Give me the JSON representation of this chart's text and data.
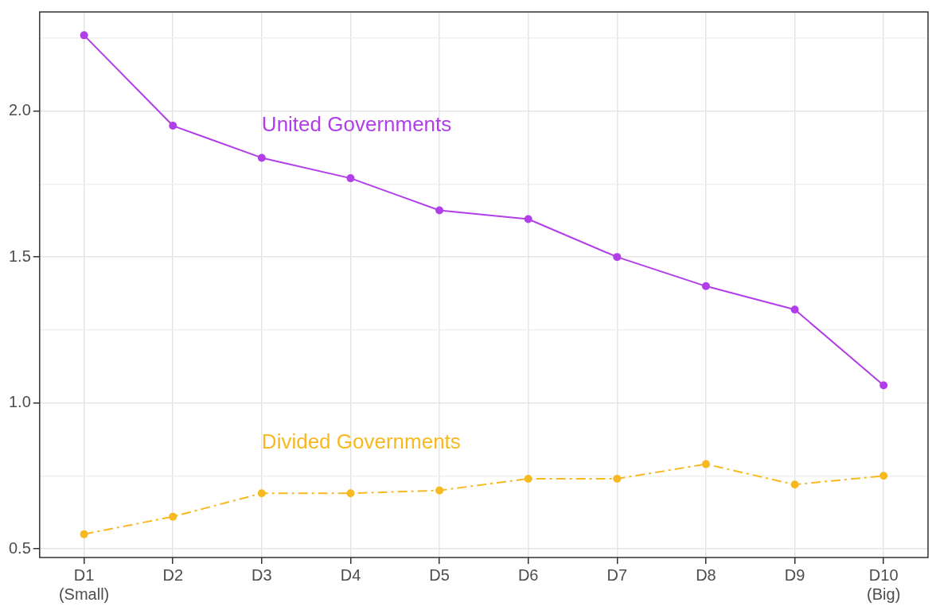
{
  "chart_data": {
    "type": "line",
    "categories": [
      "D1\n(Small)",
      "D2",
      "D3",
      "D4",
      "D5",
      "D6",
      "D7",
      "D8",
      "D9",
      "D10\n(Big)"
    ],
    "series": [
      {
        "name": "United Governments",
        "color": "#b13ee8",
        "line_style": "solid",
        "values": [
          2.26,
          1.95,
          1.84,
          1.77,
          1.66,
          1.63,
          1.5,
          1.4,
          1.32,
          1.06
        ]
      },
      {
        "name": "Divided Governments",
        "color": "#f7b922",
        "line_style": "dashed",
        "values": [
          0.55,
          0.61,
          0.69,
          0.69,
          0.7,
          0.74,
          0.74,
          0.79,
          0.72,
          0.75
        ]
      }
    ],
    "ylim": [
      0.47,
      2.34
    ],
    "yticks": [
      0.5,
      {
        "value": 0.75,
        "label": null
      },
      {
        "value": 1,
        "label": "1.0"
      },
      {
        "value": 1.25,
        "label": null
      },
      1.5,
      {
        "value": 1.75,
        "label": null
      },
      {
        "value": 2,
        "label": "2.0"
      },
      {
        "value": 2.25,
        "label": null
      }
    ],
    "grid": true,
    "legend": false,
    "marker": "circle"
  }
}
